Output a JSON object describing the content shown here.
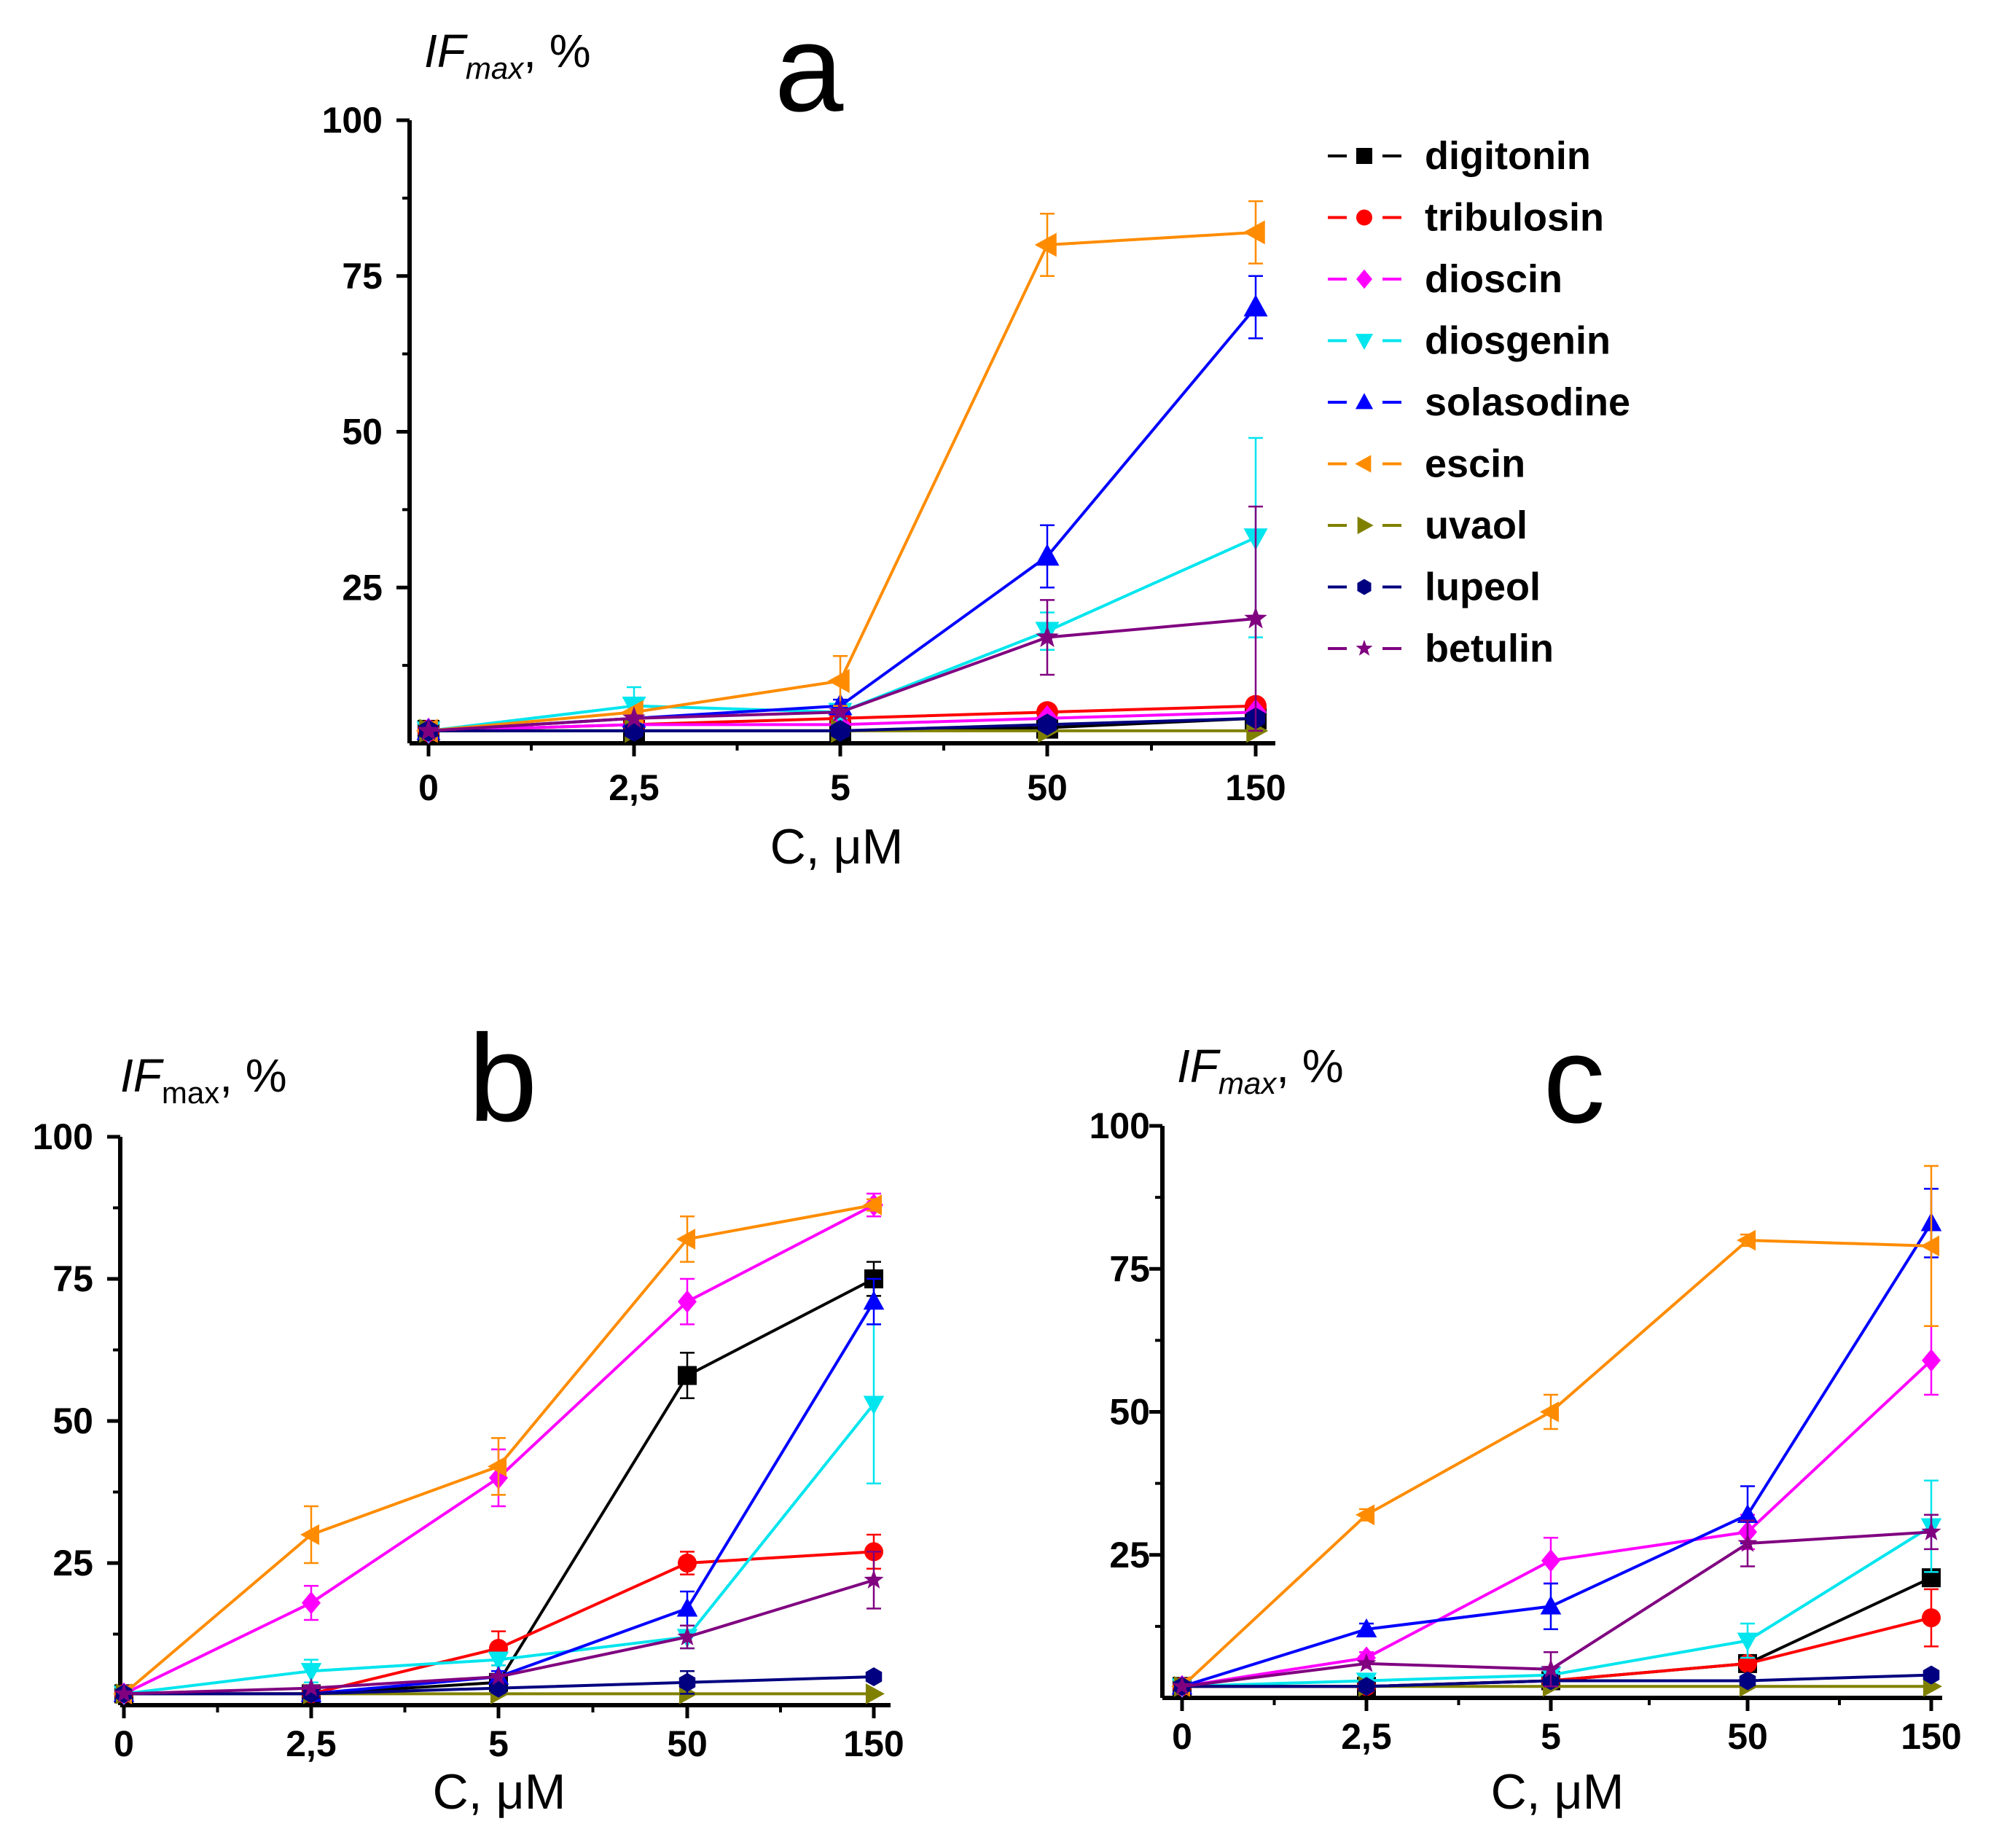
{
  "series_meta": [
    {
      "name": "digitonin",
      "color": "#000000",
      "marker": "square"
    },
    {
      "name": "tribulosin",
      "color": "#ff0000",
      "marker": "circle"
    },
    {
      "name": "dioscin",
      "color": "#ff00ff",
      "marker": "diamond"
    },
    {
      "name": "diosgenin",
      "color": "#00e5ee",
      "marker": "triangle-down"
    },
    {
      "name": "solasodine",
      "color": "#0000ff",
      "marker": "triangle-up"
    },
    {
      "name": "escin",
      "color": "#ff8c00",
      "marker": "triangle-left"
    },
    {
      "name": "uvaol",
      "color": "#808000",
      "marker": "triangle-right"
    },
    {
      "name": "lupeol",
      "color": "#000080",
      "marker": "hexagon"
    },
    {
      "name": "betulin",
      "color": "#800080",
      "marker": "star"
    }
  ],
  "chart_data": [
    {
      "type": "line",
      "panel": "a",
      "ylabel": {
        "main": "IF",
        "sub": "max",
        "rest": ", %",
        "sub_italic": true
      },
      "xlabel": "C, μM",
      "categories": [
        "0",
        "2,5",
        "5",
        "50",
        "150"
      ],
      "ylim": [
        0,
        100
      ],
      "yticks": [
        25,
        50,
        75,
        100
      ],
      "legend": "top-right",
      "series": [
        {
          "name": "digitonin",
          "values": [
            2,
            2,
            2,
            2.5,
            4
          ],
          "errors": [
            0,
            0,
            0,
            0,
            0
          ]
        },
        {
          "name": "tribulosin",
          "values": [
            2,
            3,
            4,
            5,
            6
          ],
          "errors": [
            0,
            0,
            0,
            0,
            1
          ]
        },
        {
          "name": "dioscin",
          "values": [
            2,
            3,
            3,
            4,
            5
          ],
          "errors": [
            0,
            0,
            0,
            0,
            0
          ]
        },
        {
          "name": "diosgenin",
          "values": [
            2,
            6,
            5,
            18,
            33
          ],
          "errors": [
            0,
            3,
            1,
            3,
            16
          ]
        },
        {
          "name": "solasodine",
          "values": [
            2,
            4,
            6,
            30,
            70
          ],
          "errors": [
            0,
            1,
            1,
            5,
            5
          ]
        },
        {
          "name": "escin",
          "values": [
            2,
            5,
            10,
            80,
            82
          ],
          "errors": [
            0,
            0,
            4,
            5,
            5
          ]
        },
        {
          "name": "uvaol",
          "values": [
            2,
            2,
            2,
            2,
            2
          ],
          "errors": [
            0,
            0,
            0,
            0,
            0
          ]
        },
        {
          "name": "lupeol",
          "values": [
            2,
            2,
            2,
            3,
            4
          ],
          "errors": [
            0,
            0,
            0,
            0,
            0
          ]
        },
        {
          "name": "betulin",
          "values": [
            2,
            4,
            5,
            17,
            20
          ],
          "errors": [
            0,
            0,
            0,
            6,
            18
          ]
        }
      ]
    },
    {
      "type": "line",
      "panel": "b",
      "ylabel": {
        "main": "IF",
        "sub": "max",
        "rest": ", %",
        "sub_italic": false
      },
      "xlabel": "C, μM",
      "categories": [
        "0",
        "2,5",
        "5",
        "50",
        "150"
      ],
      "ylim": [
        0,
        100
      ],
      "yticks": [
        25,
        50,
        75,
        100
      ],
      "series": [
        {
          "name": "digitonin",
          "values": [
            2,
            2,
            4,
            58,
            75
          ],
          "errors": [
            0,
            0,
            0,
            4,
            3
          ]
        },
        {
          "name": "tribulosin",
          "values": [
            2,
            2,
            10,
            25,
            27
          ],
          "errors": [
            0,
            0,
            3,
            2,
            3
          ]
        },
        {
          "name": "dioscin",
          "values": [
            2,
            18,
            40,
            71,
            88
          ],
          "errors": [
            0,
            3,
            5,
            4,
            2
          ]
        },
        {
          "name": "diosgenin",
          "values": [
            2,
            6,
            8,
            12,
            53
          ],
          "errors": [
            0,
            2,
            1,
            2,
            14
          ]
        },
        {
          "name": "solasodine",
          "values": [
            2,
            2,
            5,
            17,
            71
          ],
          "errors": [
            0,
            0,
            1,
            3,
            4
          ]
        },
        {
          "name": "escin",
          "values": [
            2,
            30,
            42,
            82,
            88
          ],
          "errors": [
            0,
            5,
            5,
            4,
            1
          ]
        },
        {
          "name": "uvaol",
          "values": [
            2,
            2,
            2,
            2,
            2
          ],
          "errors": [
            0,
            0,
            0,
            0,
            0
          ]
        },
        {
          "name": "lupeol",
          "values": [
            2,
            2,
            3,
            4,
            5
          ],
          "errors": [
            0,
            0,
            0,
            2,
            0
          ]
        },
        {
          "name": "betulin",
          "values": [
            2,
            3,
            5,
            12,
            22
          ],
          "errors": [
            0,
            0,
            0,
            2,
            5
          ]
        }
      ]
    },
    {
      "type": "line",
      "panel": "c",
      "ylabel": {
        "main": "IF",
        "sub": "max",
        "rest": ", %",
        "sub_italic": true
      },
      "xlabel": "C, μM",
      "categories": [
        "0",
        "2,5",
        "5",
        "50",
        "150"
      ],
      "ylim": [
        0,
        100
      ],
      "yticks": [
        25,
        50,
        75,
        100
      ],
      "series": [
        {
          "name": "digitonin",
          "values": [
            2,
            2,
            3,
            6,
            21
          ],
          "errors": [
            0,
            0,
            0,
            0,
            1
          ]
        },
        {
          "name": "tribulosin",
          "values": [
            2,
            2,
            3,
            6,
            14
          ],
          "errors": [
            0,
            0,
            0,
            1,
            5
          ]
        },
        {
          "name": "dioscin",
          "values": [
            2,
            7,
            24,
            29,
            59
          ],
          "errors": [
            0,
            1,
            4,
            3,
            6
          ]
        },
        {
          "name": "diosgenin",
          "values": [
            2,
            3,
            4,
            10,
            30
          ],
          "errors": [
            0,
            0,
            1,
            3,
            8
          ]
        },
        {
          "name": "solasodine",
          "values": [
            2,
            12,
            16,
            32,
            83
          ],
          "errors": [
            0,
            1,
            4,
            5,
            6
          ]
        },
        {
          "name": "escin",
          "values": [
            2,
            32,
            50,
            80,
            79
          ],
          "errors": [
            0,
            1,
            3,
            1,
            14
          ]
        },
        {
          "name": "uvaol",
          "values": [
            2,
            2,
            2,
            2,
            2
          ],
          "errors": [
            0,
            0,
            0,
            0,
            0
          ]
        },
        {
          "name": "lupeol",
          "values": [
            2,
            2,
            3,
            3,
            4
          ],
          "errors": [
            0,
            0,
            1,
            0,
            0
          ]
        },
        {
          "name": "betulin",
          "values": [
            2,
            6,
            5,
            27,
            29
          ],
          "errors": [
            0,
            0,
            3,
            4,
            3
          ]
        }
      ]
    }
  ]
}
